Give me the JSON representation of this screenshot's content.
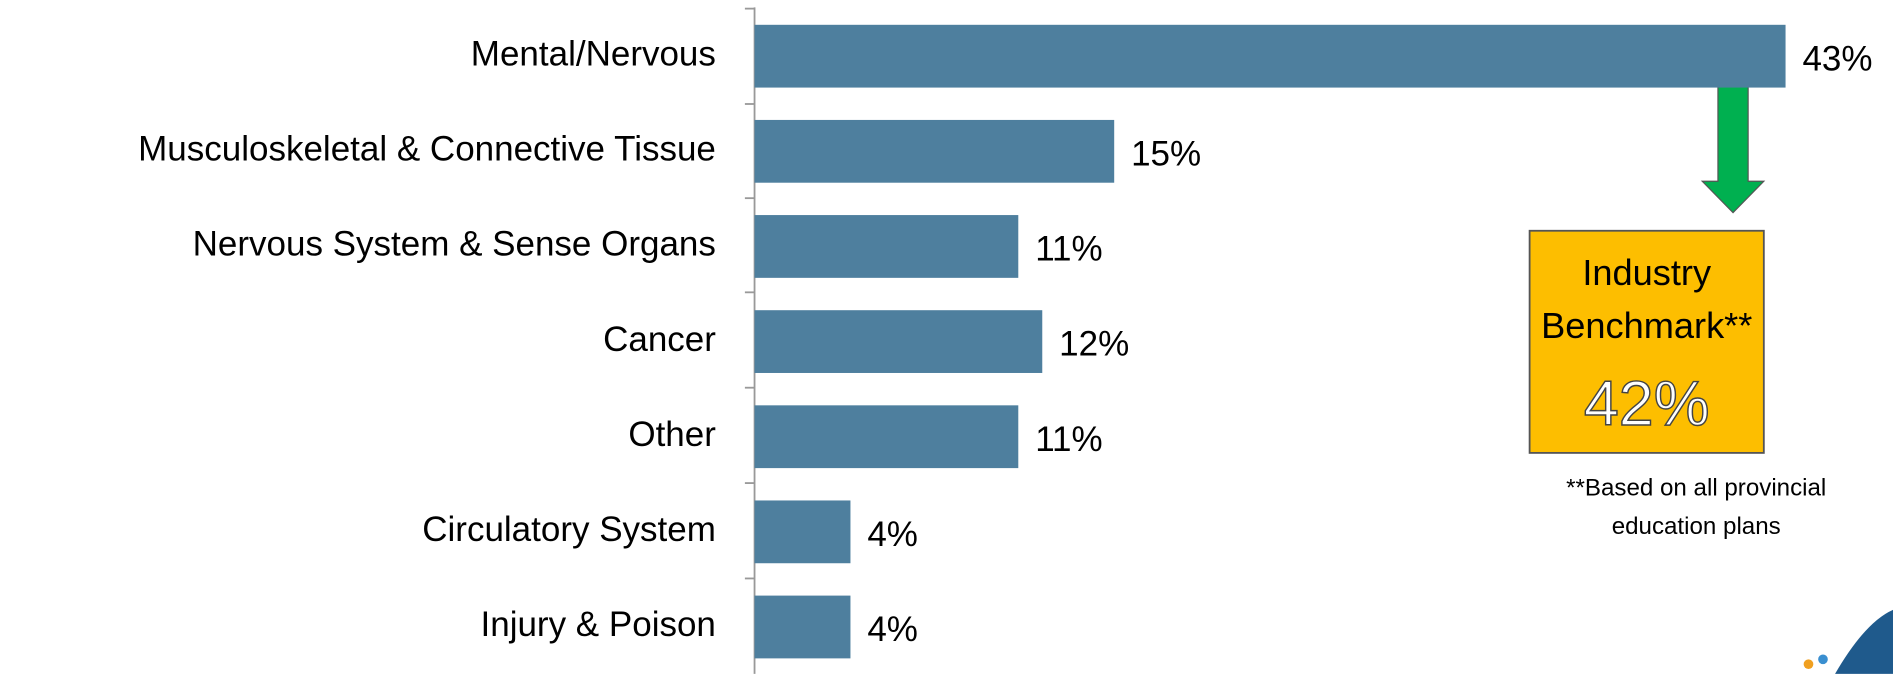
{
  "chart_data": {
    "type": "bar",
    "orientation": "horizontal",
    "categories": [
      "Mental/Nervous",
      "Musculoskeletal & Connective Tissue",
      "Nervous System & Sense Organs",
      "Cancer",
      "Other",
      "Circulatory System",
      "Injury & Poison"
    ],
    "values": [
      43,
      15,
      11,
      12,
      11,
      4,
      4
    ],
    "value_labels": [
      "43%",
      "15%",
      "11%",
      "12%",
      "11%",
      "4%",
      "4%"
    ],
    "color": "#4e7f9e",
    "xlim": [
      0,
      43
    ],
    "annotation": {
      "title_lines": [
        "Industry",
        "Benchmark**"
      ],
      "value": 42,
      "value_label": "42%",
      "color": "#fdbe00",
      "footnote_lines": [
        "**Based on all provincial",
        "education plans"
      ]
    }
  }
}
